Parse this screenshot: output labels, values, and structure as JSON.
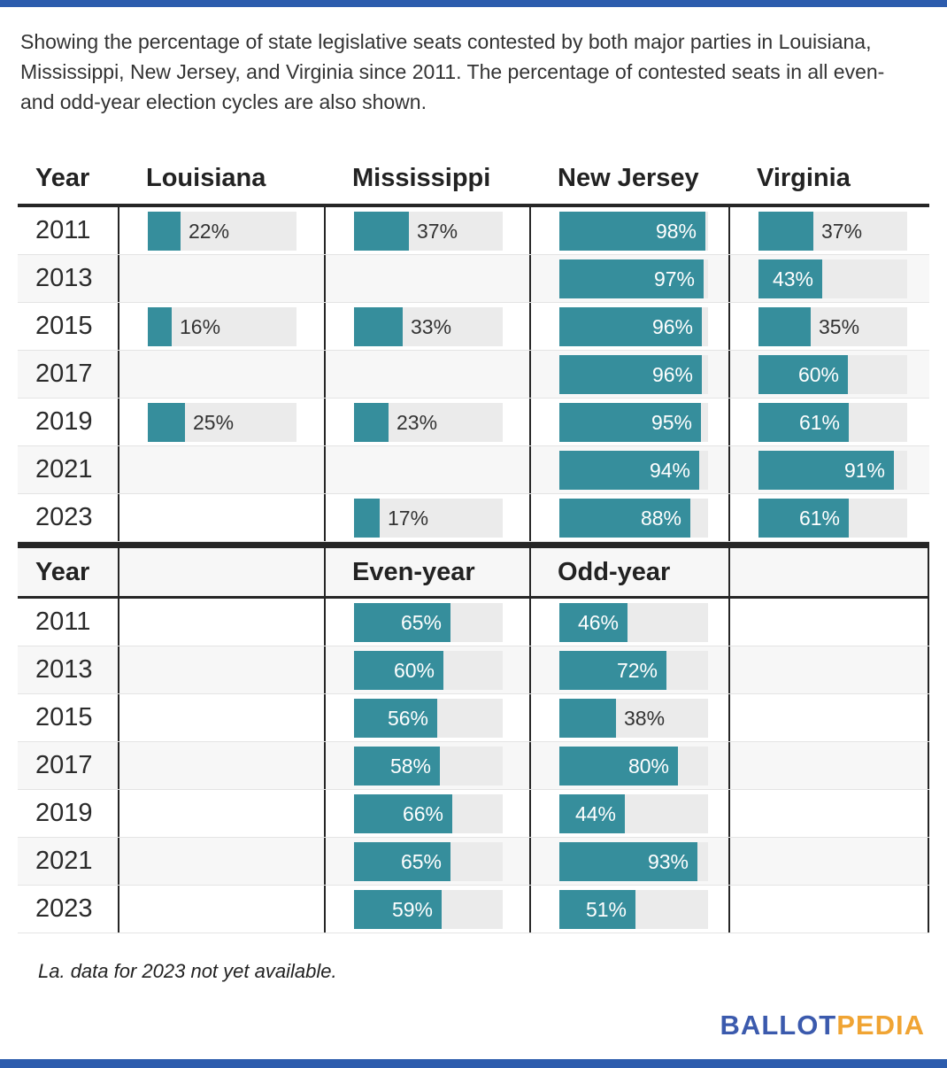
{
  "description": "Showing the percentage of state legislative seats contested by both major parties in Louisiana, Mississippi, New Jersey, and Virginia since 2011. The percentage of contested seats in all even- and odd-year election cycles are also shown.",
  "footnote": "La. data for 2023 not yet available.",
  "logo": {
    "ballot": "BALLOT",
    "pedia": "PEDIA"
  },
  "colors": {
    "bar_fill": "#368e9c",
    "bar_track": "#ebebeb",
    "row_alt": "#f7f7f7",
    "table_border": "#262626",
    "accent_bar": "#2c5cad",
    "logo_blue": "#3b5aad",
    "logo_orange": "#f0a433"
  },
  "unit": "%",
  "label_inside_threshold": 40,
  "state_table": {
    "headers": [
      "Year",
      "Louisiana",
      "Mississippi",
      "New Jersey",
      "Virginia"
    ],
    "rows": [
      {
        "year": "2011",
        "values": [
          22,
          37,
          98,
          37
        ]
      },
      {
        "year": "2013",
        "values": [
          null,
          null,
          97,
          43
        ]
      },
      {
        "year": "2015",
        "values": [
          16,
          33,
          96,
          35
        ]
      },
      {
        "year": "2017",
        "values": [
          null,
          null,
          96,
          60
        ]
      },
      {
        "year": "2019",
        "values": [
          25,
          23,
          95,
          61
        ]
      },
      {
        "year": "2021",
        "values": [
          null,
          null,
          94,
          91
        ]
      },
      {
        "year": "2023",
        "values": [
          null,
          17,
          88,
          61
        ]
      }
    ]
  },
  "cycle_table": {
    "headers": [
      "Year",
      "",
      "Even-year",
      "Odd-year",
      ""
    ],
    "rows": [
      {
        "year": "2011",
        "values": [
          null,
          65,
          46,
          null
        ]
      },
      {
        "year": "2013",
        "values": [
          null,
          60,
          72,
          null
        ]
      },
      {
        "year": "2015",
        "values": [
          null,
          56,
          38,
          null
        ]
      },
      {
        "year": "2017",
        "values": [
          null,
          58,
          80,
          null
        ]
      },
      {
        "year": "2019",
        "values": [
          null,
          66,
          44,
          null
        ]
      },
      {
        "year": "2021",
        "values": [
          null,
          65,
          93,
          null
        ]
      },
      {
        "year": "2023",
        "values": [
          null,
          59,
          51,
          null
        ]
      }
    ]
  },
  "chart_data": [
    {
      "type": "bar",
      "title": "Percentage of state legislative seats contested by both major parties since 2011",
      "orientation": "horizontal",
      "categories": [
        "2011",
        "2013",
        "2015",
        "2017",
        "2019",
        "2021",
        "2023"
      ],
      "series": [
        {
          "name": "Louisiana",
          "values": [
            22,
            null,
            16,
            null,
            25,
            null,
            null
          ]
        },
        {
          "name": "Mississippi",
          "values": [
            37,
            null,
            33,
            null,
            23,
            null,
            17
          ]
        },
        {
          "name": "New Jersey",
          "values": [
            98,
            97,
            96,
            96,
            95,
            94,
            88
          ]
        },
        {
          "name": "Virginia",
          "values": [
            37,
            43,
            35,
            60,
            61,
            91,
            61
          ]
        }
      ],
      "xlabel": "",
      "ylabel": "Year",
      "xlim": [
        0,
        100
      ],
      "unit": "%",
      "grid": false,
      "legend_position": "column-headers"
    },
    {
      "type": "bar",
      "title": "Percentage of contested seats in even- and odd-year election cycles",
      "orientation": "horizontal",
      "categories": [
        "2011",
        "2013",
        "2015",
        "2017",
        "2019",
        "2021",
        "2023"
      ],
      "series": [
        {
          "name": "Even-year",
          "values": [
            65,
            60,
            56,
            58,
            66,
            65,
            59
          ]
        },
        {
          "name": "Odd-year",
          "values": [
            46,
            72,
            38,
            80,
            44,
            93,
            51
          ]
        }
      ],
      "xlabel": "",
      "ylabel": "Year",
      "xlim": [
        0,
        100
      ],
      "unit": "%",
      "grid": false,
      "legend_position": "column-headers"
    }
  ]
}
